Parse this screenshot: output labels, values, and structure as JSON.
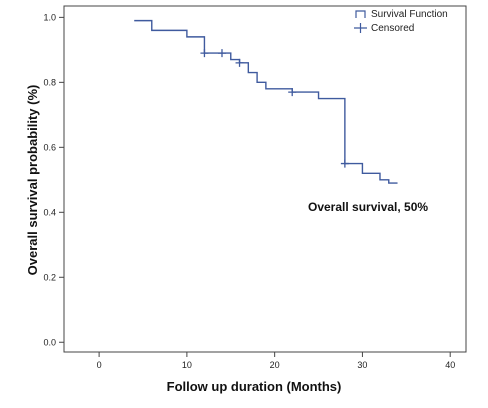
{
  "chart_data": {
    "type": "line",
    "xlabel": "Follow up duration (Months)",
    "ylabel": "Overall survival probability (%)",
    "xlim": [
      0,
      40
    ],
    "ylim": [
      0,
      1.0
    ],
    "x_ticks": [
      "0",
      "10",
      "20",
      "30",
      "40"
    ],
    "y_ticks": [
      "0.0",
      "0.2",
      "0.4",
      "0.6",
      "0.8",
      "1.0"
    ],
    "grid": false,
    "legend_position": "top-right",
    "legend": [
      {
        "label": "Survival Function",
        "symbol": "line"
      },
      {
        "label": "Censored",
        "symbol": "plus"
      }
    ],
    "line_color": "#3f5a9e",
    "series": [
      {
        "name": "Survival Function",
        "step": true,
        "x": [
          4,
          6,
          10,
          12,
          15,
          16,
          17,
          18,
          19,
          22,
          25,
          28,
          30,
          32,
          33,
          34
        ],
        "y": [
          0.99,
          0.96,
          0.94,
          0.89,
          0.87,
          0.86,
          0.83,
          0.8,
          0.78,
          0.77,
          0.75,
          0.55,
          0.52,
          0.5,
          0.49,
          0.49
        ]
      },
      {
        "name": "Censored",
        "marker": "plus",
        "x": [
          12,
          14,
          16,
          22,
          28
        ],
        "y": [
          0.89,
          0.89,
          0.86,
          0.77,
          0.55
        ]
      }
    ],
    "annotations": [
      {
        "text": "Overall survival, 50%",
        "x": 31,
        "y": 0.43
      }
    ]
  }
}
